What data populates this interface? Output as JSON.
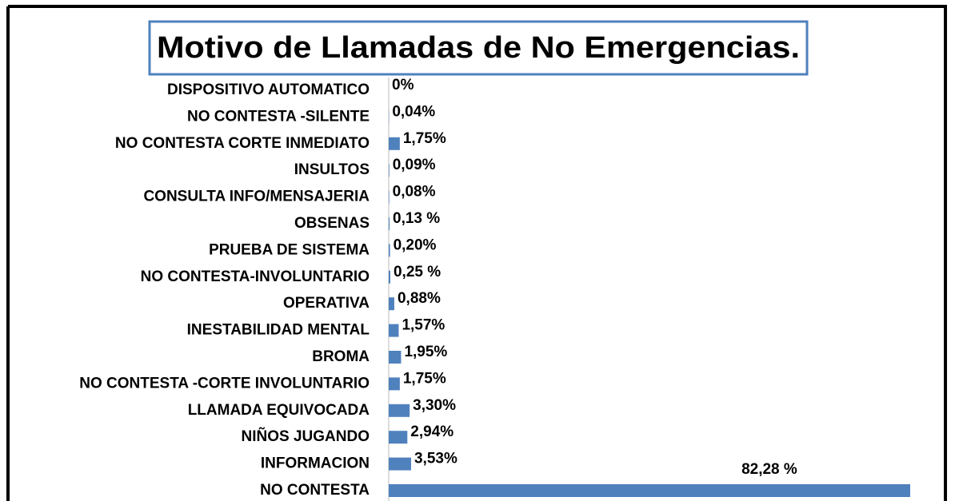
{
  "chart_data": {
    "type": "bar",
    "orientation": "horizontal",
    "title": "Motivo de Llamadas de No Emergencias.",
    "categories": [
      "DISPOSITIVO AUTOMATICO",
      "NO CONTESTA -SILENTE",
      "NO CONTESTA CORTE INMEDIATO",
      "INSULTOS",
      "CONSULTA INFO/MENSAJERIA",
      "OBSENAS",
      "PRUEBA DE SISTEMA",
      "NO CONTESTA-INVOLUNTARIO",
      "OPERATIVA",
      "INESTABILIDAD MENTAL",
      "BROMA",
      "NO CONTESTA -CORTE INVOLUNTARIO",
      "LLAMADA EQUIVOCADA",
      "NIÑOS JUGANDO",
      "INFORMACION",
      "NO CONTESTA"
    ],
    "values": [
      0,
      0.04,
      1.75,
      0.09,
      0.08,
      0.13,
      0.2,
      0.25,
      0.88,
      1.57,
      1.95,
      1.75,
      3.3,
      2.94,
      3.53,
      82.28
    ],
    "value_labels": [
      "0%",
      "0,04%",
      "1,75%",
      "0,09%",
      "0,08%",
      "0,13 %",
      "0,20%",
      "0,25 %",
      "0,88%",
      "1,57%",
      "1,95%",
      "1,75%",
      "3,30%",
      "2,94%",
      "3,53%",
      "82,28 %"
    ],
    "color": "#4f81bd"
  }
}
